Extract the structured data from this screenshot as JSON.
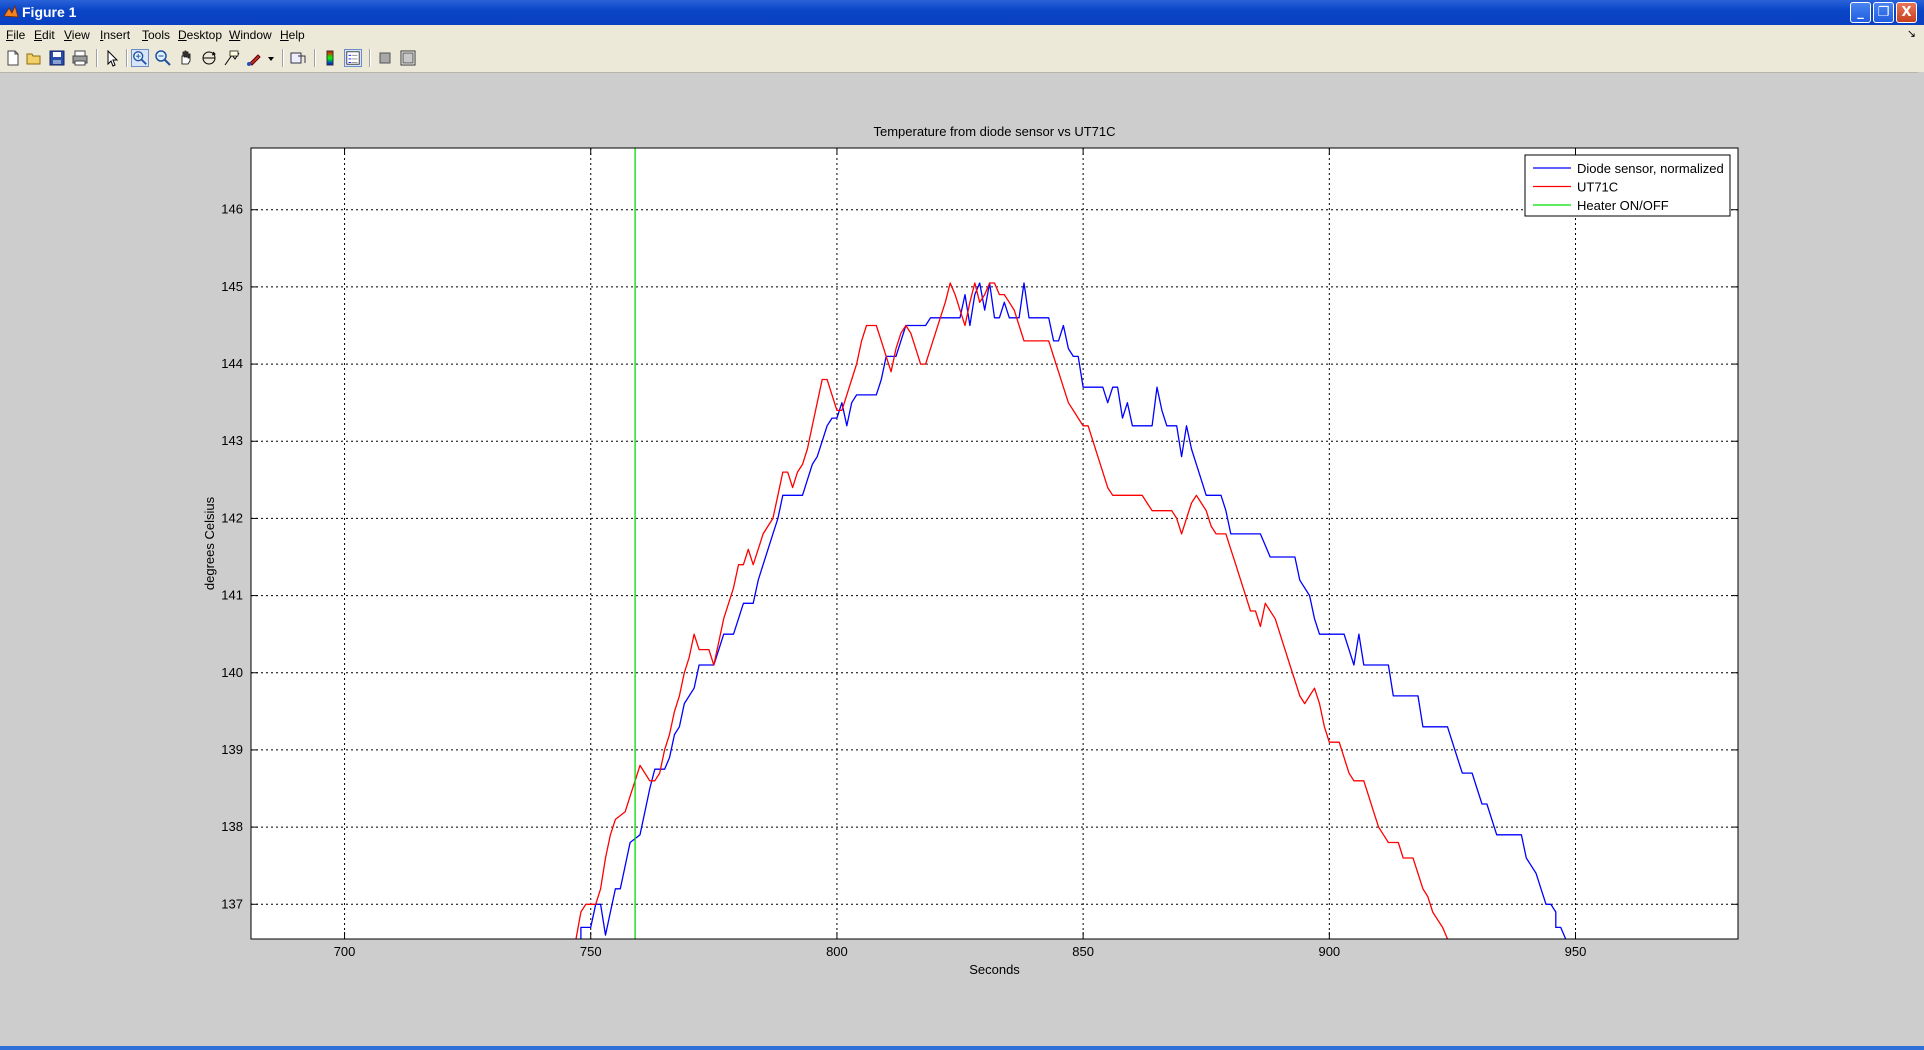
{
  "window": {
    "title": "Figure 1",
    "minimize_symbol": "_",
    "restore_symbol": "❐",
    "close_symbol": "X"
  },
  "menu": [
    "File",
    "Edit",
    "View",
    "Insert",
    "Tools",
    "Desktop",
    "Window",
    "Help"
  ],
  "menu_dock_symbol": "↘",
  "toolbar": {
    "icons": [
      "new-figure-icon",
      "open-file-icon",
      "save-icon",
      "print-icon",
      "select-arrow-icon",
      "zoom-in-icon",
      "zoom-out-icon",
      "pan-hand-icon",
      "rotate-3d-icon",
      "data-cursor-icon",
      "brush-icon",
      "brush-dropdown-icon",
      "link-plot-icon",
      "colorbar-icon",
      "legend-icon",
      "hide-plot-tools-icon",
      "show-plot-tools-icon"
    ],
    "pressed": "zoom-in-icon"
  },
  "colors": {
    "diode": "#0000ff",
    "ut71c": "#ff0000",
    "heater": "#00dd00",
    "titlebar": "#0a46c8",
    "figure_bg": "#cdcdcd"
  },
  "chart_data": {
    "type": "line",
    "title": "Temperature from diode sensor vs UT71C",
    "xlabel": "Seconds",
    "ylabel": "degrees Celsius",
    "xlim": [
      681,
      983
    ],
    "ylim": [
      136.55,
      146.8
    ],
    "xticks": [
      700,
      750,
      800,
      850,
      900,
      950
    ],
    "yticks": [
      137,
      138,
      139,
      140,
      141,
      142,
      143,
      144,
      145,
      146
    ],
    "grid": true,
    "legend_position": "top-right",
    "series": [
      {
        "name": "Diode sensor, normalized",
        "color": "#0000ff",
        "points": [
          [
            748,
            136.55
          ],
          [
            748,
            136.7
          ],
          [
            750,
            136.7
          ],
          [
            751,
            137
          ],
          [
            752,
            137
          ],
          [
            753,
            136.6
          ],
          [
            754,
            136.9
          ],
          [
            755,
            137.2
          ],
          [
            756,
            137.2
          ],
          [
            757,
            137.5
          ],
          [
            758,
            137.8
          ],
          [
            760,
            137.9
          ],
          [
            761,
            138.2
          ],
          [
            762,
            138.5
          ],
          [
            763,
            138.75
          ],
          [
            765,
            138.75
          ],
          [
            766,
            138.9
          ],
          [
            767,
            139.2
          ],
          [
            768,
            139.3
          ],
          [
            769,
            139.6
          ],
          [
            771,
            139.8
          ],
          [
            772,
            140.1
          ],
          [
            775,
            140.1
          ],
          [
            776,
            140.3
          ],
          [
            777,
            140.5
          ],
          [
            779,
            140.5
          ],
          [
            780,
            140.7
          ],
          [
            781,
            140.9
          ],
          [
            783,
            140.9
          ],
          [
            784,
            141.2
          ],
          [
            785,
            141.4
          ],
          [
            786,
            141.6
          ],
          [
            787,
            141.8
          ],
          [
            788,
            142
          ],
          [
            789,
            142.3
          ],
          [
            791,
            142.3
          ],
          [
            793,
            142.3
          ],
          [
            794,
            142.5
          ],
          [
            795,
            142.7
          ],
          [
            796,
            142.8
          ],
          [
            797,
            143
          ],
          [
            798,
            143.2
          ],
          [
            799,
            143.3
          ],
          [
            800,
            143.3
          ],
          [
            801,
            143.5
          ],
          [
            802,
            143.2
          ],
          [
            803,
            143.5
          ],
          [
            804,
            143.6
          ],
          [
            808,
            143.6
          ],
          [
            809,
            143.8
          ],
          [
            810,
            144.1
          ],
          [
            812,
            144.1
          ],
          [
            813,
            144.3
          ],
          [
            814,
            144.5
          ],
          [
            818,
            144.5
          ],
          [
            819,
            144.6
          ],
          [
            820,
            144.6
          ],
          [
            825,
            144.6
          ],
          [
            826,
            144.9
          ],
          [
            827,
            144.5
          ],
          [
            828,
            144.9
          ],
          [
            829,
            145.05
          ],
          [
            830,
            144.7
          ],
          [
            831,
            145.05
          ],
          [
            832,
            144.6
          ],
          [
            833,
            144.6
          ],
          [
            834,
            144.8
          ],
          [
            835,
            144.6
          ],
          [
            837,
            144.6
          ],
          [
            838,
            145.05
          ],
          [
            839,
            144.6
          ],
          [
            840,
            144.6
          ],
          [
            843,
            144.6
          ],
          [
            844,
            144.3
          ],
          [
            845,
            144.3
          ],
          [
            846,
            144.5
          ],
          [
            847,
            144.2
          ],
          [
            848,
            144.1
          ],
          [
            849,
            144.1
          ],
          [
            850,
            143.7
          ],
          [
            854,
            143.7
          ],
          [
            855,
            143.5
          ],
          [
            856,
            143.7
          ],
          [
            857,
            143.7
          ],
          [
            858,
            143.3
          ],
          [
            859,
            143.5
          ],
          [
            860,
            143.2
          ],
          [
            864,
            143.2
          ],
          [
            865,
            143.7
          ],
          [
            866,
            143.4
          ],
          [
            867,
            143.2
          ],
          [
            869,
            143.2
          ],
          [
            870,
            142.8
          ],
          [
            871,
            143.2
          ],
          [
            872,
            142.9
          ],
          [
            873,
            142.7
          ],
          [
            874,
            142.5
          ],
          [
            875,
            142.3
          ],
          [
            877,
            142.3
          ],
          [
            878,
            142.3
          ],
          [
            879,
            142.1
          ],
          [
            880,
            141.8
          ],
          [
            886,
            141.8
          ],
          [
            888,
            141.5
          ],
          [
            893,
            141.5
          ],
          [
            894,
            141.2
          ],
          [
            896,
            141
          ],
          [
            897,
            140.7
          ],
          [
            898,
            140.5
          ],
          [
            903,
            140.5
          ],
          [
            904,
            140.3
          ],
          [
            905,
            140.1
          ],
          [
            906,
            140.5
          ],
          [
            907,
            140.1
          ],
          [
            908,
            140.1
          ],
          [
            912,
            140.1
          ],
          [
            913,
            139.7
          ],
          [
            918,
            139.7
          ],
          [
            919,
            139.3
          ],
          [
            924,
            139.3
          ],
          [
            925,
            139.1
          ],
          [
            926,
            138.9
          ],
          [
            927,
            138.7
          ],
          [
            929,
            138.7
          ],
          [
            930,
            138.5
          ],
          [
            931,
            138.3
          ],
          [
            932,
            138.3
          ],
          [
            933,
            138.1
          ],
          [
            934,
            137.9
          ],
          [
            939,
            137.9
          ],
          [
            940,
            137.6
          ],
          [
            941,
            137.5
          ],
          [
            942,
            137.4
          ],
          [
            943,
            137.2
          ],
          [
            944,
            137
          ],
          [
            945,
            137
          ],
          [
            946,
            136.9
          ],
          [
            946,
            136.7
          ],
          [
            947,
            136.7
          ],
          [
            948,
            136.55
          ]
        ]
      },
      {
        "name": "UT71C",
        "color": "#ff0000",
        "points": [
          [
            747,
            136.55
          ],
          [
            748,
            136.9
          ],
          [
            749,
            137
          ],
          [
            751,
            137
          ],
          [
            752,
            137.2
          ],
          [
            753,
            137.6
          ],
          [
            754,
            137.9
          ],
          [
            755,
            138.1
          ],
          [
            757,
            138.2
          ],
          [
            758,
            138.4
          ],
          [
            759,
            138.6
          ],
          [
            760,
            138.8
          ],
          [
            761,
            138.7
          ],
          [
            762,
            138.6
          ],
          [
            763,
            138.6
          ],
          [
            764,
            138.7
          ],
          [
            765,
            139
          ],
          [
            766,
            139.2
          ],
          [
            767,
            139.5
          ],
          [
            768,
            139.7
          ],
          [
            769,
            140
          ],
          [
            770,
            140.2
          ],
          [
            771,
            140.5
          ],
          [
            772,
            140.3
          ],
          [
            774,
            140.3
          ],
          [
            775,
            140.1
          ],
          [
            776,
            140.4
          ],
          [
            777,
            140.7
          ],
          [
            778,
            140.9
          ],
          [
            779,
            141.1
          ],
          [
            780,
            141.4
          ],
          [
            781,
            141.4
          ],
          [
            782,
            141.6
          ],
          [
            783,
            141.4
          ],
          [
            784,
            141.6
          ],
          [
            785,
            141.8
          ],
          [
            787,
            142
          ],
          [
            788,
            142.3
          ],
          [
            789,
            142.6
          ],
          [
            790,
            142.6
          ],
          [
            791,
            142.4
          ],
          [
            792,
            142.6
          ],
          [
            793,
            142.7
          ],
          [
            794,
            142.9
          ],
          [
            795,
            143.2
          ],
          [
            796,
            143.5
          ],
          [
            797,
            143.8
          ],
          [
            798,
            143.8
          ],
          [
            799,
            143.6
          ],
          [
            800,
            143.4
          ],
          [
            801,
            143.4
          ],
          [
            802,
            143.6
          ],
          [
            803,
            143.8
          ],
          [
            804,
            144
          ],
          [
            805,
            144.3
          ],
          [
            806,
            144.5
          ],
          [
            808,
            144.5
          ],
          [
            809,
            144.3
          ],
          [
            810,
            144.1
          ],
          [
            811,
            143.9
          ],
          [
            812,
            144.2
          ],
          [
            813,
            144.4
          ],
          [
            814,
            144.5
          ],
          [
            815,
            144.4
          ],
          [
            816,
            144.2
          ],
          [
            817,
            144
          ],
          [
            818,
            144
          ],
          [
            819,
            144.2
          ],
          [
            820,
            144.4
          ],
          [
            821,
            144.6
          ],
          [
            822,
            144.8
          ],
          [
            823,
            145.05
          ],
          [
            824,
            144.9
          ],
          [
            825,
            144.7
          ],
          [
            826,
            144.5
          ],
          [
            827,
            144.8
          ],
          [
            828,
            145.05
          ],
          [
            829,
            144.8
          ],
          [
            830,
            144.9
          ],
          [
            831,
            145.05
          ],
          [
            832,
            145.05
          ],
          [
            833,
            144.9
          ],
          [
            834,
            144.9
          ],
          [
            835,
            144.8
          ],
          [
            836,
            144.7
          ],
          [
            837,
            144.5
          ],
          [
            838,
            144.3
          ],
          [
            843,
            144.3
          ],
          [
            844,
            144.1
          ],
          [
            845,
            143.9
          ],
          [
            846,
            143.7
          ],
          [
            847,
            143.5
          ],
          [
            848,
            143.4
          ],
          [
            849,
            143.3
          ],
          [
            850,
            143.2
          ],
          [
            851,
            143.2
          ],
          [
            852,
            143
          ],
          [
            853,
            142.8
          ],
          [
            854,
            142.6
          ],
          [
            855,
            142.4
          ],
          [
            856,
            142.3
          ],
          [
            862,
            142.3
          ],
          [
            863,
            142.2
          ],
          [
            864,
            142.1
          ],
          [
            868,
            142.1
          ],
          [
            869,
            142
          ],
          [
            870,
            141.8
          ],
          [
            871,
            142
          ],
          [
            872,
            142.2
          ],
          [
            873,
            142.3
          ],
          [
            874,
            142.2
          ],
          [
            875,
            142.1
          ],
          [
            876,
            141.9
          ],
          [
            877,
            141.8
          ],
          [
            879,
            141.8
          ],
          [
            880,
            141.6
          ],
          [
            881,
            141.4
          ],
          [
            882,
            141.2
          ],
          [
            883,
            141
          ],
          [
            884,
            140.8
          ],
          [
            885,
            140.8
          ],
          [
            886,
            140.6
          ],
          [
            887,
            140.9
          ],
          [
            888,
            140.8
          ],
          [
            889,
            140.7
          ],
          [
            890,
            140.5
          ],
          [
            891,
            140.3
          ],
          [
            892,
            140.1
          ],
          [
            893,
            139.9
          ],
          [
            894,
            139.7
          ],
          [
            895,
            139.6
          ],
          [
            896,
            139.7
          ],
          [
            897,
            139.8
          ],
          [
            898,
            139.6
          ],
          [
            899,
            139.3
          ],
          [
            900,
            139.1
          ],
          [
            902,
            139.1
          ],
          [
            903,
            138.9
          ],
          [
            904,
            138.7
          ],
          [
            905,
            138.6
          ],
          [
            907,
            138.6
          ],
          [
            908,
            138.4
          ],
          [
            909,
            138.2
          ],
          [
            910,
            138
          ],
          [
            911,
            137.9
          ],
          [
            912,
            137.8
          ],
          [
            914,
            137.8
          ],
          [
            915,
            137.6
          ],
          [
            917,
            137.6
          ],
          [
            918,
            137.4
          ],
          [
            919,
            137.2
          ],
          [
            920,
            137.1
          ],
          [
            921,
            136.9
          ],
          [
            922,
            136.8
          ],
          [
            923,
            136.7
          ],
          [
            924,
            136.55
          ]
        ]
      },
      {
        "name": "Heater ON/OFF",
        "color": "#00dd00",
        "points": [
          [
            759,
            136.55
          ],
          [
            759,
            146.8
          ]
        ]
      }
    ]
  }
}
